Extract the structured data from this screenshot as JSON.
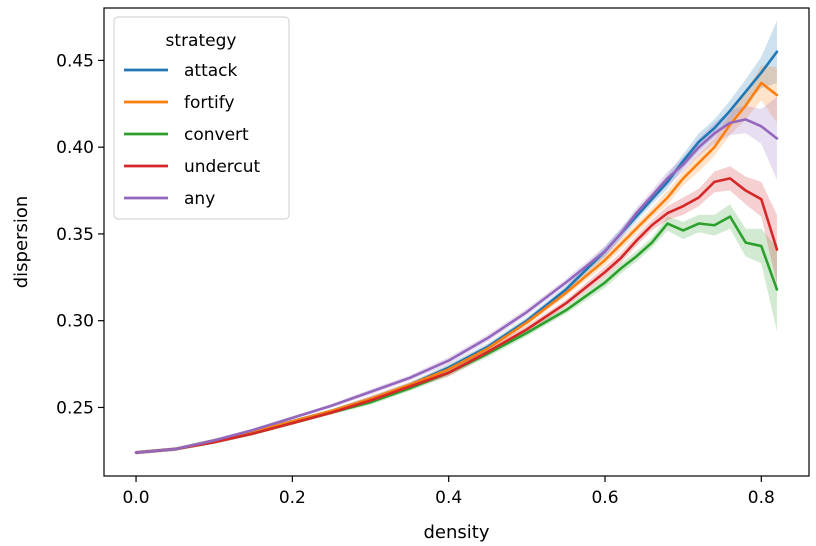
{
  "chart_data": {
    "type": "line",
    "xlabel": "density",
    "ylabel": "dispersion",
    "xlim": [
      -0.041,
      0.861
    ],
    "ylim": [
      0.2105,
      0.4802
    ],
    "xticks": [
      0.0,
      0.2,
      0.4,
      0.6,
      0.8
    ],
    "xtick_labels": [
      "0.0",
      "0.2",
      "0.4",
      "0.6",
      "0.8"
    ],
    "yticks": [
      0.25,
      0.3,
      0.35,
      0.4,
      0.45
    ],
    "ytick_labels": [
      "0.25",
      "0.30",
      "0.35",
      "0.40",
      "0.45"
    ],
    "grid": false,
    "legend": {
      "title": "strategy",
      "placement": "upper left"
    },
    "x": [
      0.0,
      0.05,
      0.1,
      0.15,
      0.2,
      0.25,
      0.3,
      0.35,
      0.4,
      0.45,
      0.5,
      0.55,
      0.6,
      0.62,
      0.64,
      0.66,
      0.68,
      0.7,
      0.72,
      0.74,
      0.76,
      0.78,
      0.8,
      0.82
    ],
    "series": [
      {
        "name": "attack",
        "color": "#1f77b4",
        "values": [
          0.224,
          0.226,
          0.231,
          0.236,
          0.242,
          0.248,
          0.255,
          0.263,
          0.273,
          0.285,
          0.3,
          0.318,
          0.34,
          0.35,
          0.36,
          0.37,
          0.38,
          0.392,
          0.403,
          0.411,
          0.421,
          0.432,
          0.443,
          0.455
        ],
        "band": [
          0.001,
          0.001,
          0.001,
          0.001,
          0.001,
          0.001,
          0.0015,
          0.0015,
          0.002,
          0.002,
          0.002,
          0.002,
          0.003,
          0.003,
          0.003,
          0.003,
          0.004,
          0.004,
          0.005,
          0.005,
          0.006,
          0.007,
          0.009,
          0.018
        ]
      },
      {
        "name": "fortify",
        "color": "#ff7f0e",
        "values": [
          0.224,
          0.226,
          0.231,
          0.236,
          0.242,
          0.248,
          0.255,
          0.263,
          0.272,
          0.284,
          0.299,
          0.316,
          0.335,
          0.344,
          0.353,
          0.362,
          0.371,
          0.382,
          0.391,
          0.4,
          0.413,
          0.424,
          0.437,
          0.43
        ],
        "band": [
          0.001,
          0.001,
          0.001,
          0.001,
          0.001,
          0.001,
          0.0015,
          0.0015,
          0.002,
          0.002,
          0.002,
          0.002,
          0.003,
          0.003,
          0.003,
          0.003,
          0.004,
          0.004,
          0.005,
          0.005,
          0.006,
          0.008,
          0.01,
          0.016
        ]
      },
      {
        "name": "convert",
        "color": "#2ca02c",
        "values": [
          0.224,
          0.226,
          0.23,
          0.235,
          0.241,
          0.247,
          0.253,
          0.261,
          0.27,
          0.281,
          0.293,
          0.306,
          0.322,
          0.33,
          0.337,
          0.345,
          0.356,
          0.352,
          0.356,
          0.355,
          0.36,
          0.345,
          0.343,
          0.318
        ],
        "band": [
          0.001,
          0.001,
          0.001,
          0.001,
          0.001,
          0.001,
          0.0015,
          0.0015,
          0.002,
          0.002,
          0.002,
          0.002,
          0.003,
          0.003,
          0.003,
          0.003,
          0.004,
          0.005,
          0.005,
          0.006,
          0.007,
          0.008,
          0.01,
          0.024
        ]
      },
      {
        "name": "undercut",
        "color": "#d62728",
        "values": [
          0.224,
          0.226,
          0.23,
          0.235,
          0.241,
          0.247,
          0.254,
          0.262,
          0.27,
          0.282,
          0.295,
          0.31,
          0.328,
          0.336,
          0.346,
          0.355,
          0.362,
          0.366,
          0.371,
          0.38,
          0.382,
          0.375,
          0.37,
          0.341
        ],
        "band": [
          0.001,
          0.001,
          0.001,
          0.001,
          0.001,
          0.001,
          0.0015,
          0.0015,
          0.002,
          0.002,
          0.002,
          0.002,
          0.003,
          0.003,
          0.003,
          0.003,
          0.004,
          0.005,
          0.005,
          0.006,
          0.007,
          0.008,
          0.01,
          0.02
        ]
      },
      {
        "name": "any",
        "color": "#9467bd",
        "values": [
          0.224,
          0.226,
          0.231,
          0.237,
          0.244,
          0.251,
          0.259,
          0.267,
          0.277,
          0.29,
          0.305,
          0.322,
          0.34,
          0.35,
          0.362,
          0.372,
          0.382,
          0.39,
          0.4,
          0.408,
          0.414,
          0.416,
          0.412,
          0.405
        ],
        "band": [
          0.001,
          0.001,
          0.001,
          0.001,
          0.001,
          0.001,
          0.0015,
          0.0015,
          0.002,
          0.002,
          0.002,
          0.002,
          0.003,
          0.003,
          0.003,
          0.003,
          0.004,
          0.004,
          0.005,
          0.006,
          0.007,
          0.008,
          0.01,
          0.024
        ]
      }
    ]
  }
}
